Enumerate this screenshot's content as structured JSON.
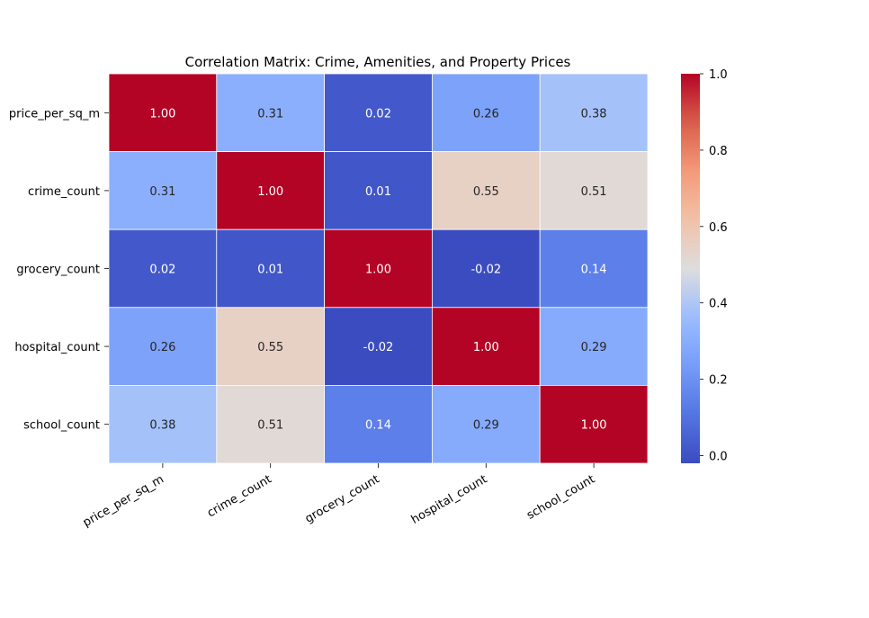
{
  "chart_data": {
    "type": "heatmap",
    "title": "Correlation Matrix: Crime, Amenities, and Property Prices",
    "xlabel": "",
    "ylabel": "",
    "row_labels": [
      "price_per_sq_m",
      "crime_count",
      "grocery_count",
      "hospital_count",
      "school_count"
    ],
    "col_labels": [
      "price_per_sq_m",
      "crime_count",
      "grocery_count",
      "hospital_count",
      "school_count"
    ],
    "values": [
      [
        1.0,
        0.31,
        0.02,
        0.26,
        0.38
      ],
      [
        0.31,
        1.0,
        0.01,
        0.55,
        0.51
      ],
      [
        0.02,
        0.01,
        1.0,
        -0.02,
        0.14
      ],
      [
        0.26,
        0.55,
        -0.02,
        1.0,
        0.29
      ],
      [
        0.38,
        0.51,
        0.14,
        0.29,
        1.0
      ]
    ],
    "value_format": "0.00",
    "colormap": "coolwarm",
    "colorbar": {
      "range": [
        -0.02,
        1.0
      ],
      "ticks": [
        0.0,
        0.2,
        0.4,
        0.6,
        0.8,
        1.0
      ],
      "tick_labels": [
        "0.0",
        "0.2",
        "0.4",
        "0.6",
        "0.8",
        "1.0"
      ]
    },
    "cell_border_color": "#ffffff",
    "grid": false,
    "legend": "colorbar-right"
  }
}
